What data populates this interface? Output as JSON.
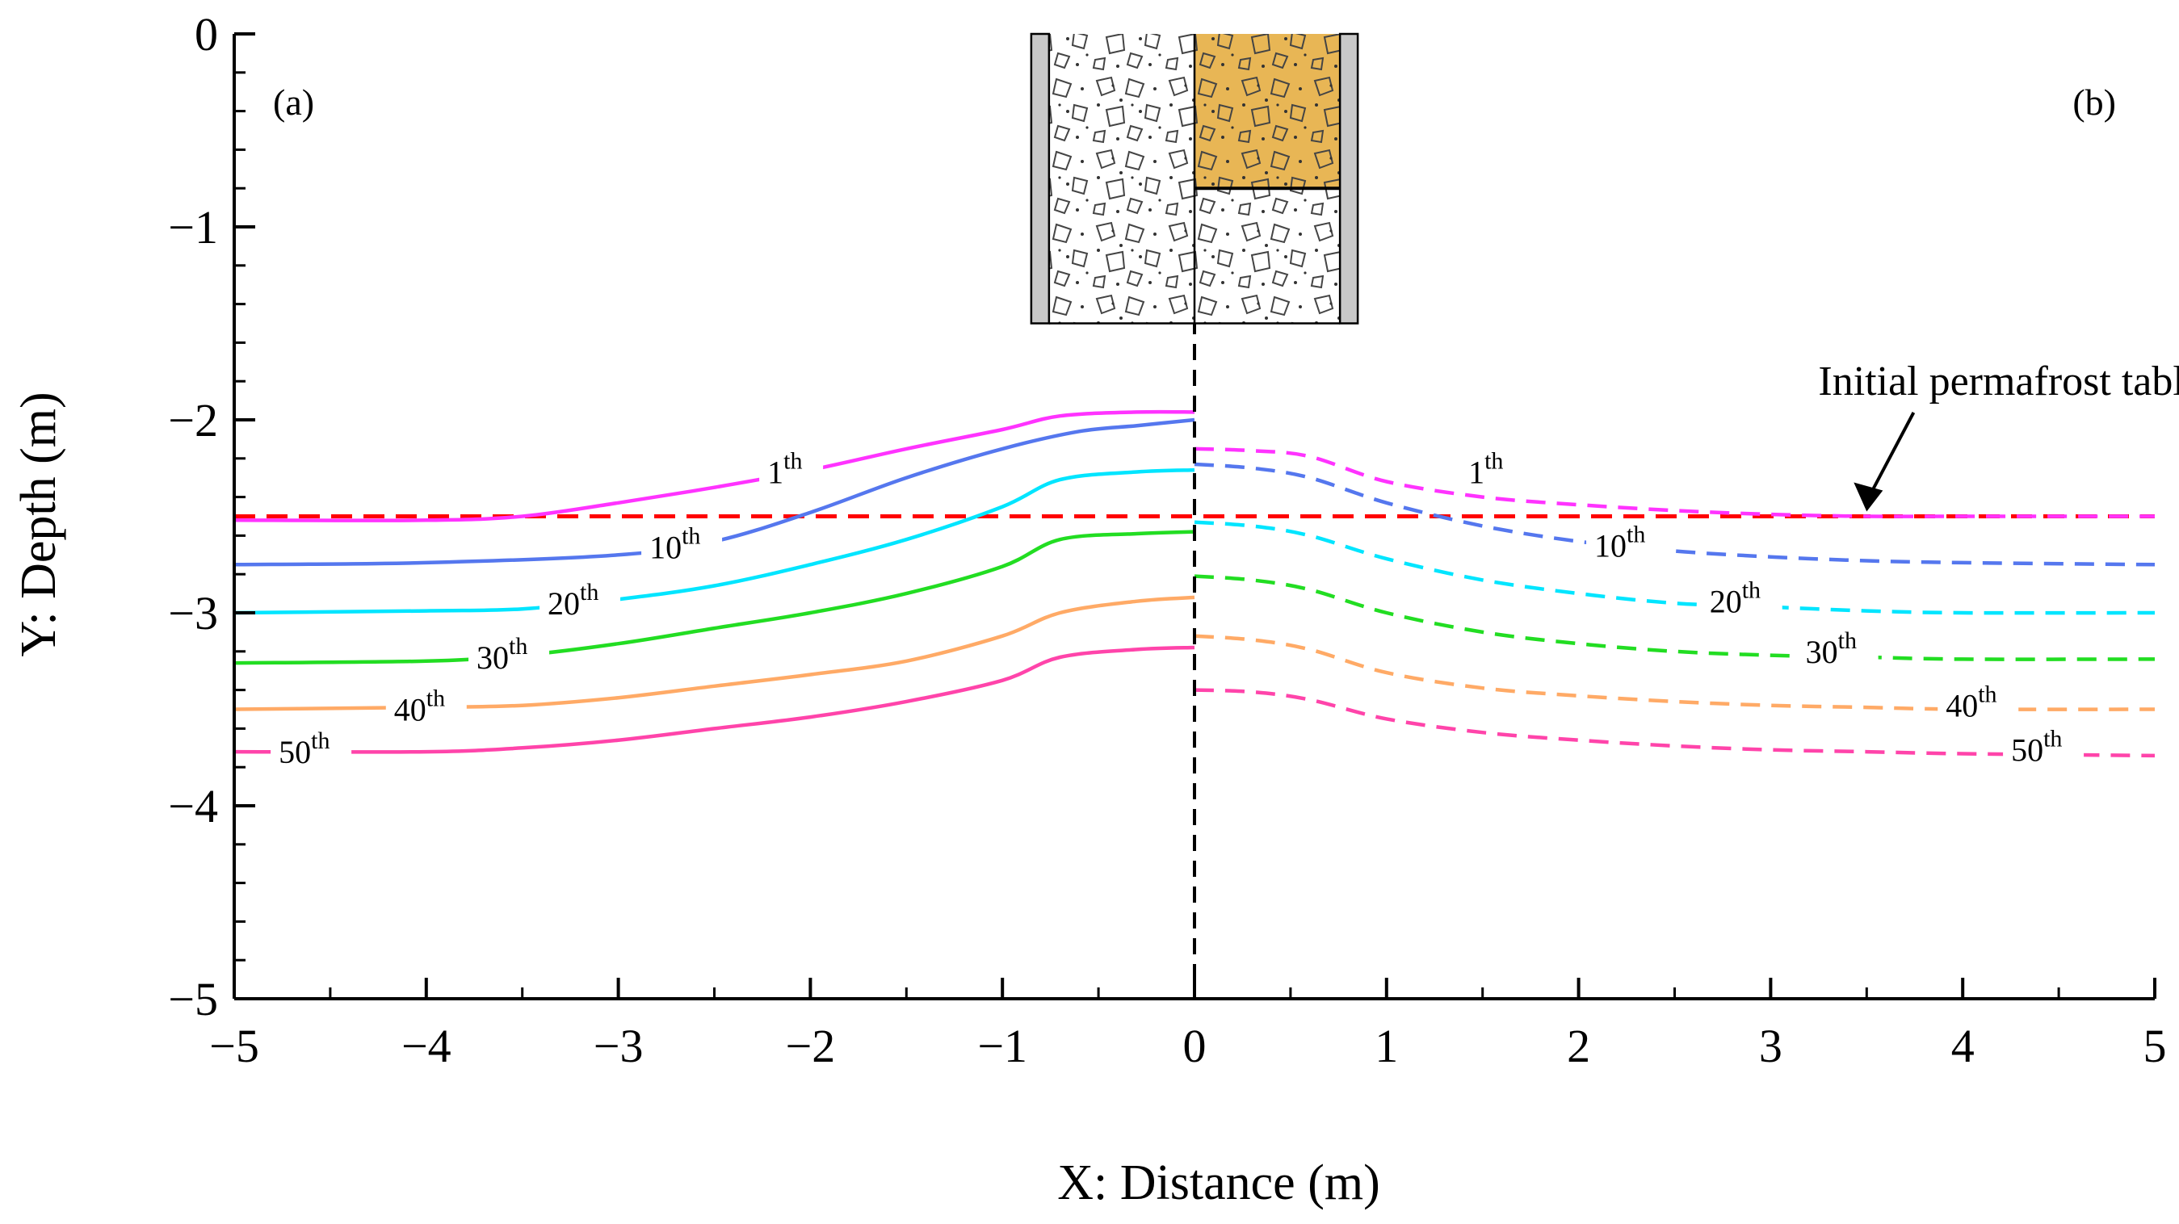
{
  "chart_data": {
    "type": "line",
    "xlabel": "X: Distance (m)",
    "ylabel": "Y: Depth (m)",
    "xlim": [
      -5,
      5
    ],
    "ylim": [
      -5,
      0
    ],
    "xticks": [
      -5,
      -4,
      -3,
      -2,
      -1,
      0,
      1,
      2,
      3,
      4,
      5
    ],
    "yticks": [
      0,
      -1,
      -2,
      -3,
      -4,
      -5
    ],
    "xtick_labels": [
      "−5",
      "−4",
      "−3",
      "−2",
      "−1",
      "0",
      "1",
      "2",
      "3",
      "4",
      "5"
    ],
    "ytick_labels": [
      "0",
      "−1",
      "−2",
      "−3",
      "−4",
      "−5"
    ],
    "panel_labels": [
      "(a)",
      "(b)"
    ],
    "centerline_x": 0,
    "reference_line": {
      "label": "Initial permafrost table",
      "y": -2.5,
      "color": "#ff0000",
      "style": "dashed"
    },
    "series": [
      {
        "name": "1th",
        "base": "1",
        "suffix": "th",
        "color": "#ff33ff",
        "left": {
          "x": [
            -5,
            -4,
            -3.5,
            -3,
            -2.5,
            -2,
            -1.5,
            -1,
            -0.7,
            -0.3,
            0
          ],
          "y": [
            -2.52,
            -2.52,
            -2.5,
            -2.43,
            -2.35,
            -2.26,
            -2.15,
            -2.05,
            -1.98,
            -1.96,
            -1.96
          ]
        },
        "right": {
          "x": [
            0,
            0.3,
            0.6,
            1,
            1.5,
            2,
            2.5,
            3,
            3.5,
            4,
            5
          ],
          "y": [
            -2.15,
            -2.16,
            -2.19,
            -2.32,
            -2.4,
            -2.44,
            -2.47,
            -2.49,
            -2.5,
            -2.5,
            -2.5
          ]
        }
      },
      {
        "name": "10th",
        "base": "10",
        "suffix": "th",
        "color": "#5577ee",
        "left": {
          "x": [
            -5,
            -4,
            -3,
            -2.5,
            -2,
            -1.5,
            -1,
            -0.6,
            -0.3,
            0
          ],
          "y": [
            -2.75,
            -2.74,
            -2.7,
            -2.63,
            -2.48,
            -2.3,
            -2.15,
            -2.06,
            -2.03,
            -2.0
          ]
        },
        "right": {
          "x": [
            0,
            0.3,
            0.6,
            1,
            1.5,
            2,
            2.5,
            3,
            3.5,
            4,
            5
          ],
          "y": [
            -2.23,
            -2.25,
            -2.3,
            -2.43,
            -2.55,
            -2.63,
            -2.68,
            -2.71,
            -2.73,
            -2.74,
            -2.75
          ]
        }
      },
      {
        "name": "20th",
        "base": "20",
        "suffix": "th",
        "color": "#00e5ff",
        "left": {
          "x": [
            -5,
            -4,
            -3.5,
            -3,
            -2.5,
            -2,
            -1.5,
            -1,
            -0.7,
            -0.3,
            0
          ],
          "y": [
            -3.0,
            -2.99,
            -2.98,
            -2.93,
            -2.86,
            -2.75,
            -2.62,
            -2.45,
            -2.31,
            -2.27,
            -2.26
          ]
        },
        "right": {
          "x": [
            0,
            0.3,
            0.6,
            1,
            1.5,
            2,
            2.5,
            3,
            3.5,
            4,
            5
          ],
          "y": [
            -2.53,
            -2.55,
            -2.6,
            -2.72,
            -2.83,
            -2.9,
            -2.95,
            -2.97,
            -2.99,
            -3.0,
            -3.0
          ]
        }
      },
      {
        "name": "30th",
        "base": "30",
        "suffix": "th",
        "color": "#22dd22",
        "left": {
          "x": [
            -5,
            -4,
            -3.5,
            -3,
            -2.5,
            -2,
            -1.5,
            -1,
            -0.7,
            -0.3,
            0
          ],
          "y": [
            -3.26,
            -3.25,
            -3.22,
            -3.16,
            -3.08,
            -3.0,
            -2.9,
            -2.76,
            -2.62,
            -2.59,
            -2.58
          ]
        },
        "right": {
          "x": [
            0,
            0.3,
            0.6,
            1,
            1.5,
            2,
            2.5,
            3,
            3.5,
            4,
            5
          ],
          "y": [
            -2.81,
            -2.83,
            -2.88,
            -3.0,
            -3.1,
            -3.16,
            -3.2,
            -3.22,
            -3.23,
            -3.24,
            -3.24
          ]
        }
      },
      {
        "name": "40th",
        "base": "40",
        "suffix": "th",
        "color": "#ffaa66",
        "left": {
          "x": [
            -5,
            -4,
            -3.5,
            -3,
            -2.5,
            -2,
            -1.5,
            -1,
            -0.7,
            -0.3,
            0
          ],
          "y": [
            -3.5,
            -3.49,
            -3.48,
            -3.44,
            -3.38,
            -3.32,
            -3.25,
            -3.12,
            -3.0,
            -2.94,
            -2.92
          ]
        },
        "right": {
          "x": [
            0,
            0.3,
            0.6,
            1,
            1.5,
            2,
            2.5,
            3,
            3.5,
            4,
            5
          ],
          "y": [
            -3.12,
            -3.14,
            -3.19,
            -3.31,
            -3.39,
            -3.43,
            -3.46,
            -3.48,
            -3.49,
            -3.5,
            -3.5
          ]
        }
      },
      {
        "name": "50th",
        "base": "50",
        "suffix": "th",
        "color": "#ff44aa",
        "left": {
          "x": [
            -5,
            -4,
            -3.5,
            -3,
            -2.5,
            -2,
            -1.5,
            -1,
            -0.7,
            -0.3,
            0
          ],
          "y": [
            -3.72,
            -3.72,
            -3.7,
            -3.66,
            -3.6,
            -3.54,
            -3.46,
            -3.35,
            -3.23,
            -3.19,
            -3.18
          ]
        },
        "right": {
          "x": [
            0,
            0.3,
            0.6,
            1,
            1.5,
            2,
            2.5,
            3,
            3.5,
            4,
            5
          ],
          "y": [
            -3.4,
            -3.41,
            -3.45,
            -3.55,
            -3.62,
            -3.66,
            -3.69,
            -3.71,
            -3.72,
            -3.73,
            -3.74
          ]
        }
      }
    ],
    "left_label_positions": [
      {
        "series": "1th",
        "x": -2.1,
        "y": -2.27
      },
      {
        "series": "10th",
        "x": -2.67,
        "y": -2.66
      },
      {
        "series": "20th",
        "x": -3.2,
        "y": -2.95
      },
      {
        "series": "30th",
        "x": -3.57,
        "y": -3.23
      },
      {
        "series": "40th",
        "x": -4.0,
        "y": -3.5
      },
      {
        "series": "50th",
        "x": -4.6,
        "y": -3.72
      }
    ],
    "right_label_positions": [
      {
        "series": "1th",
        "x": 1.55,
        "y": -2.27
      },
      {
        "series": "10th",
        "x": 2.25,
        "y": -2.65
      },
      {
        "series": "20th",
        "x": 2.85,
        "y": -2.94
      },
      {
        "series": "30th",
        "x": 3.35,
        "y": -3.2
      },
      {
        "series": "40th",
        "x": 4.08,
        "y": -3.48
      },
      {
        "series": "50th",
        "x": 4.42,
        "y": -3.71
      }
    ],
    "annotation": {
      "text": "Initial permafrost table",
      "arrow_to": {
        "x": 3.5,
        "y": -2.5
      },
      "text_at": {
        "x": 4.25,
        "y": -1.87
      }
    },
    "schematic": {
      "x_range": [
        -0.85,
        0.85
      ],
      "y_range": [
        0,
        -1.5
      ],
      "fill_color": "#e8b655",
      "interface_depth": -0.8
    }
  }
}
